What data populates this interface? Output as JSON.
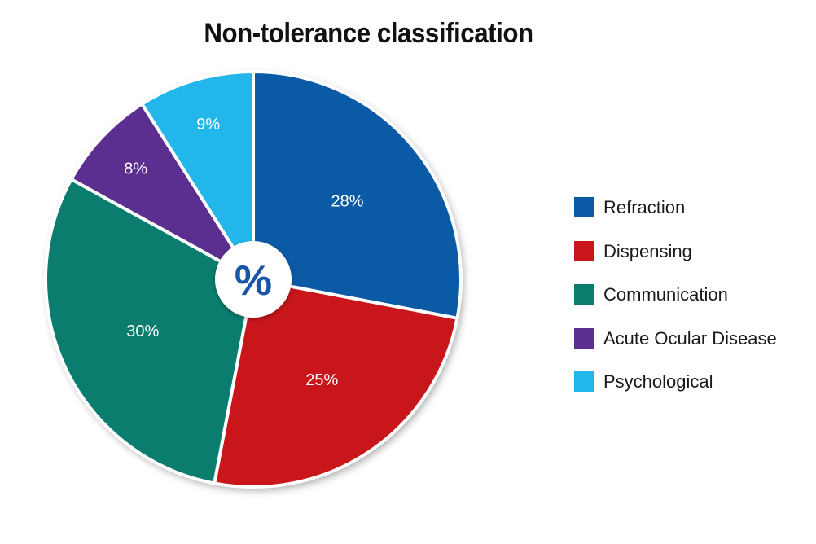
{
  "chart_data": {
    "type": "pie",
    "title": "Non-tolerance classification",
    "center_label": "%",
    "slices": [
      {
        "name": "Refraction",
        "value": 28,
        "label": "28%",
        "color": "#0a5aa6"
      },
      {
        "name": "Dispensing",
        "value": 25,
        "label": "25%",
        "color": "#c8161b"
      },
      {
        "name": "Communication",
        "value": 30,
        "label": "30%",
        "color": "#0a7d6f"
      },
      {
        "name": "Acute Ocular Disease",
        "value": 8,
        "label": "8%",
        "color": "#5a2f90"
      },
      {
        "name": "Psychological",
        "value": 9,
        "label": "9%",
        "color": "#23b6ea"
      }
    ],
    "legend_position": "right"
  }
}
